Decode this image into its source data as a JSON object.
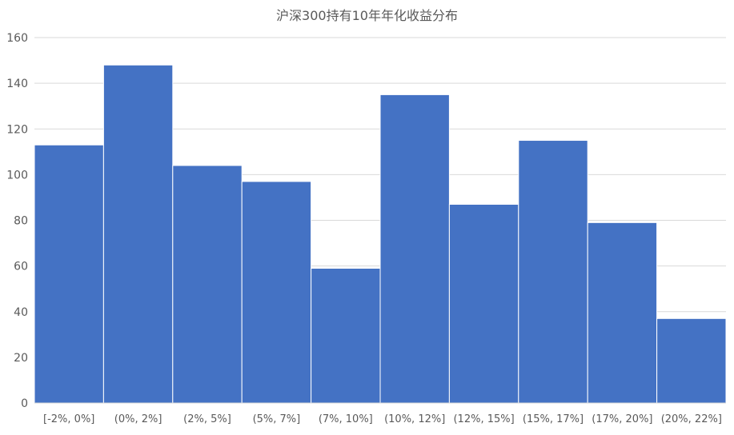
{
  "chart_data": {
    "type": "bar",
    "title": "沪深300持有10年年化收益分布",
    "xlabel": "",
    "ylabel": "",
    "categories": [
      "[-2%, 0%]",
      "(0%, 2%]",
      "(2%, 5%]",
      "(5%, 7%]",
      "(7%, 10%]",
      "(10%, 12%]",
      "(12%, 15%]",
      "(15%, 17%]",
      "(17%, 20%]",
      "(20%, 22%]"
    ],
    "values": [
      113,
      148,
      104,
      97,
      59,
      135,
      87,
      115,
      79,
      37
    ],
    "ylim": [
      0,
      160
    ],
    "yticks": [
      0,
      20,
      40,
      60,
      80,
      100,
      120,
      140,
      160
    ],
    "grid": true,
    "bar_color": "#4472C4",
    "bar_edge_color": "#ffffff",
    "grid_color": "#d9d9d9",
    "text_color": "#595959"
  }
}
